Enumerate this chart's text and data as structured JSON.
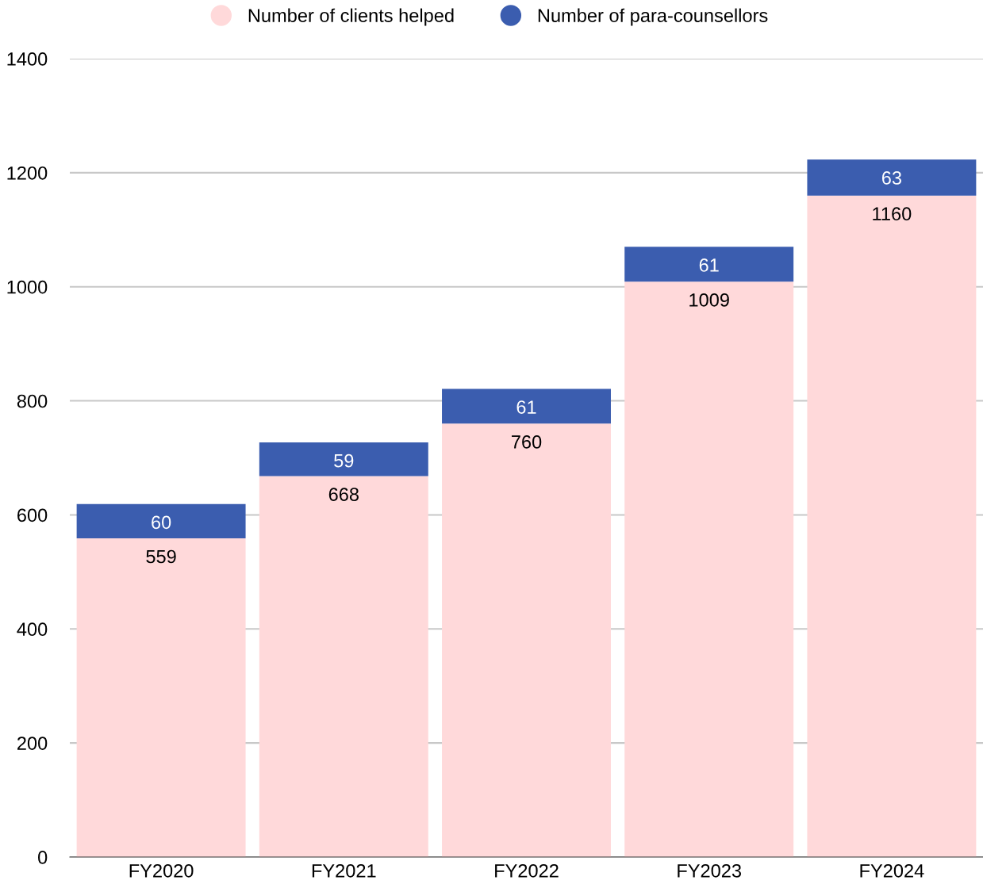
{
  "chart_data": {
    "type": "bar",
    "stacked": true,
    "categories": [
      "FY2020",
      "FY2021",
      "FY2022",
      "FY2023",
      "FY2024"
    ],
    "series": [
      {
        "name": "Number of clients helped",
        "color": "#ffd9da",
        "values": [
          559,
          668,
          760,
          1009,
          1160
        ]
      },
      {
        "name": "Number of para-counsellors",
        "color": "#3b5daf",
        "values": [
          60,
          59,
          61,
          61,
          63
        ]
      }
    ],
    "ylim": [
      0,
      1400
    ],
    "yticks": [
      0,
      200,
      400,
      600,
      800,
      1000,
      1200,
      1400
    ],
    "grid": "y",
    "legend": "top",
    "data_labels": true
  }
}
